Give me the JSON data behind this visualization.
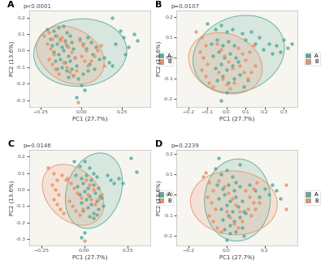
{
  "panels": [
    {
      "label": "A",
      "pvalue": "p<0.0001",
      "xlim": [
        -0.32,
        0.42
      ],
      "ylim": [
        -0.34,
        0.24
      ],
      "xticks": [
        -0.25,
        0.0,
        0.25
      ],
      "ytick_vals": [
        -0.3,
        -0.2,
        -0.1,
        0.0,
        0.1,
        0.2
      ],
      "ytick_labels": [
        "-0.3",
        "-0.2",
        "-0.1",
        "0.0",
        "0.1",
        "0.2"
      ],
      "A_points": [
        [
          -0.21,
          0.13
        ],
        [
          -0.17,
          0.12
        ],
        [
          -0.14,
          0.14
        ],
        [
          -0.11,
          0.15
        ],
        [
          -0.09,
          0.11
        ],
        [
          -0.19,
          0.07
        ],
        [
          -0.16,
          0.09
        ],
        [
          -0.13,
          0.07
        ],
        [
          -0.1,
          0.06
        ],
        [
          -0.07,
          0.09
        ],
        [
          -0.18,
          0.03
        ],
        [
          -0.15,
          0.04
        ],
        [
          -0.12,
          0.02
        ],
        [
          -0.09,
          0.03
        ],
        [
          -0.06,
          0.05
        ],
        [
          -0.17,
          -0.01
        ],
        [
          -0.14,
          -0.02
        ],
        [
          -0.11,
          0.0
        ],
        [
          -0.08,
          -0.03
        ],
        [
          -0.05,
          0.01
        ],
        [
          -0.16,
          -0.06
        ],
        [
          -0.13,
          -0.05
        ],
        [
          -0.1,
          -0.07
        ],
        [
          -0.07,
          -0.06
        ],
        [
          -0.04,
          -0.04
        ],
        [
          -0.15,
          -0.11
        ],
        [
          -0.12,
          -0.1
        ],
        [
          -0.09,
          -0.12
        ],
        [
          -0.06,
          -0.11
        ],
        [
          -0.03,
          -0.09
        ],
        [
          -0.08,
          -0.16
        ],
        [
          -0.05,
          -0.15
        ],
        [
          -0.02,
          -0.17
        ],
        [
          0.01,
          -0.14
        ],
        [
          0.04,
          -0.12
        ],
        [
          -0.01,
          0.07
        ],
        [
          0.01,
          0.04
        ],
        [
          0.04,
          0.08
        ],
        [
          0.03,
          0.01
        ],
        [
          0.06,
          0.05
        ],
        [
          0.07,
          -0.02
        ],
        [
          0.09,
          0.02
        ],
        [
          0.11,
          -0.05
        ],
        [
          0.05,
          -0.08
        ],
        [
          0.08,
          -0.11
        ],
        [
          0.0,
          -0.21
        ],
        [
          0.02,
          -0.24
        ],
        [
          0.19,
          0.2
        ],
        [
          0.24,
          0.12
        ],
        [
          0.26,
          0.08
        ],
        [
          0.21,
          0.04
        ],
        [
          0.29,
          0.02
        ],
        [
          0.27,
          -0.02
        ],
        [
          0.32,
          0.1
        ],
        [
          0.34,
          0.06
        ],
        [
          0.14,
          -0.04
        ],
        [
          0.17,
          -0.07
        ],
        [
          0.19,
          -0.09
        ],
        [
          -0.03,
          -0.28
        ]
      ],
      "B_points": [
        [
          -0.23,
          0.09
        ],
        [
          -0.2,
          0.11
        ],
        [
          -0.18,
          0.07
        ],
        [
          -0.21,
          0.04
        ],
        [
          -0.19,
          0.01
        ],
        [
          -0.17,
          -0.02
        ],
        [
          -0.2,
          -0.05
        ],
        [
          -0.18,
          -0.08
        ],
        [
          -0.16,
          -0.11
        ],
        [
          -0.14,
          -0.14
        ],
        [
          -0.12,
          0.08
        ],
        [
          -0.1,
          0.05
        ],
        [
          -0.08,
          0.02
        ],
        [
          -0.06,
          -0.01
        ],
        [
          -0.04,
          -0.04
        ],
        [
          -0.11,
          -0.07
        ],
        [
          -0.09,
          -0.1
        ],
        [
          -0.07,
          -0.13
        ],
        [
          -0.05,
          -0.15
        ],
        [
          -0.03,
          -0.12
        ],
        [
          -0.01,
          0.06
        ],
        [
          0.01,
          0.03
        ],
        [
          0.03,
          0.0
        ],
        [
          0.0,
          -0.03
        ],
        [
          0.02,
          -0.06
        ],
        [
          0.04,
          -0.09
        ],
        [
          0.06,
          -0.06
        ],
        [
          0.08,
          -0.03
        ],
        [
          0.1,
          0.0
        ],
        [
          0.12,
          0.03
        ],
        [
          -0.15,
          0.09
        ],
        [
          -0.13,
          0.06
        ],
        [
          -0.02,
          -0.31
        ],
        [
          0.14,
          -0.09
        ]
      ]
    },
    {
      "label": "B",
      "pvalue": "p=0.0107",
      "xlim": [
        -0.26,
        0.37
      ],
      "ylim": [
        -0.24,
        0.23
      ],
      "xticks": [
        -0.2,
        -0.1,
        0.0,
        0.1,
        0.2,
        0.3
      ],
      "ytick_vals": [
        -0.2,
        -0.1,
        0.0,
        0.1,
        0.2
      ],
      "ytick_labels": [
        "-0.2",
        "-0.1",
        "0.0",
        "0.1",
        "0.2"
      ],
      "A_points": [
        [
          -0.1,
          0.17
        ],
        [
          -0.06,
          0.14
        ],
        [
          -0.03,
          0.16
        ],
        [
          0.0,
          0.13
        ],
        [
          0.03,
          0.14
        ],
        [
          -0.08,
          0.07
        ],
        [
          -0.05,
          0.09
        ],
        [
          -0.02,
          0.06
        ],
        [
          0.01,
          0.08
        ],
        [
          0.04,
          0.06
        ],
        [
          -0.07,
          0.01
        ],
        [
          -0.04,
          0.03
        ],
        [
          -0.01,
          0.0
        ],
        [
          0.02,
          0.02
        ],
        [
          0.05,
          0.0
        ],
        [
          -0.06,
          -0.05
        ],
        [
          -0.03,
          -0.03
        ],
        [
          0.0,
          -0.06
        ],
        [
          0.03,
          -0.04
        ],
        [
          0.06,
          -0.02
        ],
        [
          -0.05,
          -0.11
        ],
        [
          -0.02,
          -0.09
        ],
        [
          0.01,
          -0.12
        ],
        [
          0.04,
          -0.1
        ],
        [
          0.07,
          -0.08
        ],
        [
          0.08,
          0.12
        ],
        [
          0.1,
          0.09
        ],
        [
          0.13,
          0.13
        ],
        [
          0.15,
          0.07
        ],
        [
          0.17,
          0.1
        ],
        [
          0.19,
          0.04
        ],
        [
          0.22,
          0.07
        ],
        [
          0.24,
          0.02
        ],
        [
          0.26,
          0.06
        ],
        [
          0.28,
          0.03
        ],
        [
          0.3,
          0.09
        ],
        [
          0.32,
          0.05
        ],
        [
          0.34,
          0.07
        ],
        [
          -0.03,
          -0.21
        ],
        [
          0.0,
          -0.17
        ],
        [
          0.09,
          -0.14
        ],
        [
          0.11,
          -0.11
        ]
      ],
      "B_points": [
        [
          -0.16,
          0.13
        ],
        [
          -0.13,
          0.1
        ],
        [
          -0.11,
          0.06
        ],
        [
          -0.14,
          0.03
        ],
        [
          -0.12,
          0.0
        ],
        [
          -0.1,
          -0.03
        ],
        [
          -0.13,
          -0.06
        ],
        [
          -0.11,
          -0.09
        ],
        [
          -0.09,
          -0.12
        ],
        [
          -0.07,
          -0.14
        ],
        [
          -0.05,
          0.07
        ],
        [
          -0.03,
          0.04
        ],
        [
          -0.01,
          0.01
        ],
        [
          0.01,
          -0.02
        ],
        [
          0.03,
          -0.05
        ],
        [
          -0.04,
          -0.07
        ],
        [
          -0.02,
          -0.1
        ],
        [
          0.0,
          -0.13
        ],
        [
          0.02,
          -0.15
        ],
        [
          0.04,
          -0.12
        ],
        [
          0.06,
          0.05
        ],
        [
          0.08,
          0.02
        ],
        [
          0.1,
          -0.01
        ],
        [
          0.07,
          -0.04
        ],
        [
          0.09,
          -0.07
        ],
        [
          0.11,
          -0.1
        ],
        [
          0.13,
          -0.07
        ],
        [
          0.15,
          -0.04
        ],
        [
          0.12,
          0.03
        ],
        [
          0.14,
          0.06
        ]
      ]
    },
    {
      "label": "C",
      "pvalue": "p=0.0146",
      "xlim": [
        -0.32,
        0.38
      ],
      "ylim": [
        -0.34,
        0.24
      ],
      "xticks": [
        -0.25,
        0.0,
        0.25
      ],
      "ytick_vals": [
        -0.3,
        -0.2,
        -0.1,
        0.0,
        0.1,
        0.2
      ],
      "ytick_labels": [
        "-0.3",
        "-0.2",
        "-0.1",
        "0.0",
        "0.1",
        "0.2"
      ],
      "A_points": [
        [
          -0.06,
          0.17
        ],
        [
          -0.03,
          0.14
        ],
        [
          0.0,
          0.17
        ],
        [
          0.03,
          0.13
        ],
        [
          0.05,
          0.1
        ],
        [
          -0.05,
          0.09
        ],
        [
          -0.02,
          0.07
        ],
        [
          0.01,
          0.09
        ],
        [
          0.04,
          0.06
        ],
        [
          0.07,
          0.08
        ],
        [
          -0.04,
          0.02
        ],
        [
          -0.01,
          0.04
        ],
        [
          0.02,
          0.01
        ],
        [
          0.05,
          0.03
        ],
        [
          0.08,
          0.01
        ],
        [
          -0.03,
          -0.03
        ],
        [
          0.0,
          -0.01
        ],
        [
          0.03,
          -0.04
        ],
        [
          0.06,
          -0.02
        ],
        [
          0.09,
          -0.04
        ],
        [
          -0.02,
          -0.08
        ],
        [
          0.01,
          -0.06
        ],
        [
          0.04,
          -0.09
        ],
        [
          0.07,
          -0.07
        ],
        [
          0.1,
          -0.05
        ],
        [
          -0.01,
          -0.13
        ],
        [
          0.02,
          -0.11
        ],
        [
          0.05,
          -0.14
        ],
        [
          0.08,
          -0.12
        ],
        [
          0.11,
          -0.1
        ],
        [
          0.13,
          0.09
        ],
        [
          0.15,
          0.06
        ],
        [
          0.17,
          0.04
        ],
        [
          0.2,
          0.07
        ],
        [
          0.22,
          0.04
        ],
        [
          0.27,
          0.19
        ],
        [
          0.3,
          0.11
        ],
        [
          -0.02,
          -0.29
        ],
        [
          0.0,
          -0.26
        ],
        [
          0.03,
          -0.16
        ],
        [
          0.05,
          -0.17
        ],
        [
          0.07,
          -0.15
        ]
      ],
      "B_points": [
        [
          -0.21,
          0.13
        ],
        [
          -0.18,
          0.1
        ],
        [
          -0.16,
          0.06
        ],
        [
          -0.19,
          0.03
        ],
        [
          -0.17,
          0.0
        ],
        [
          -0.15,
          -0.03
        ],
        [
          -0.18,
          -0.06
        ],
        [
          -0.16,
          -0.09
        ],
        [
          -0.14,
          -0.12
        ],
        [
          -0.12,
          -0.14
        ],
        [
          -0.1,
          0.07
        ],
        [
          -0.08,
          0.04
        ],
        [
          -0.06,
          0.01
        ],
        [
          -0.04,
          -0.02
        ],
        [
          -0.02,
          -0.05
        ],
        [
          -0.09,
          -0.07
        ],
        [
          -0.07,
          -0.1
        ],
        [
          -0.05,
          -0.13
        ],
        [
          -0.03,
          -0.15
        ],
        [
          -0.01,
          -0.12
        ],
        [
          0.01,
          0.06
        ],
        [
          0.03,
          0.03
        ],
        [
          0.05,
          0.0
        ],
        [
          0.02,
          -0.03
        ],
        [
          0.04,
          -0.06
        ],
        [
          0.06,
          -0.09
        ],
        [
          0.08,
          -0.06
        ],
        [
          0.1,
          -0.03
        ],
        [
          -0.13,
          0.09
        ],
        [
          -0.11,
          0.06
        ],
        [
          -0.0,
          -0.31
        ]
      ]
    },
    {
      "label": "D",
      "pvalue": "p=0.2239",
      "xlim": [
        -0.26,
        0.37
      ],
      "ylim": [
        -0.25,
        0.22
      ],
      "xticks": [
        -0.2,
        0.0,
        0.2
      ],
      "ytick_vals": [
        -0.2,
        -0.1,
        0.0,
        0.1,
        0.2
      ],
      "ytick_labels": [
        "-0.2",
        "-0.1",
        "0.0",
        "0.1",
        "0.2"
      ],
      "A_points": [
        [
          -0.06,
          0.13
        ],
        [
          -0.03,
          0.1
        ],
        [
          0.0,
          0.12
        ],
        [
          0.03,
          0.09
        ],
        [
          0.05,
          0.06
        ],
        [
          -0.05,
          0.05
        ],
        [
          -0.02,
          0.03
        ],
        [
          0.01,
          0.05
        ],
        [
          0.04,
          0.02
        ],
        [
          0.07,
          0.04
        ],
        [
          -0.04,
          -0.02
        ],
        [
          -0.01,
          0.0
        ],
        [
          0.02,
          -0.03
        ],
        [
          0.05,
          -0.01
        ],
        [
          0.08,
          -0.03
        ],
        [
          -0.03,
          -0.07
        ],
        [
          0.0,
          -0.05
        ],
        [
          0.03,
          -0.08
        ],
        [
          0.06,
          -0.06
        ],
        [
          0.09,
          -0.08
        ],
        [
          -0.02,
          -0.12
        ],
        [
          0.01,
          -0.1
        ],
        [
          0.04,
          -0.13
        ],
        [
          0.07,
          -0.11
        ],
        [
          0.1,
          -0.09
        ],
        [
          -0.01,
          -0.17
        ],
        [
          0.02,
          -0.15
        ],
        [
          0.05,
          -0.18
        ],
        [
          0.08,
          -0.16
        ],
        [
          0.12,
          0.05
        ],
        [
          0.15,
          0.02
        ],
        [
          0.17,
          -0.01
        ],
        [
          0.2,
          0.03
        ],
        [
          0.22,
          0.0
        ],
        [
          0.24,
          0.05
        ],
        [
          0.26,
          0.02
        ],
        [
          0.28,
          -0.02
        ],
        [
          0.0,
          -0.22
        ],
        [
          0.02,
          -0.19
        ],
        [
          0.09,
          -0.2
        ],
        [
          -0.04,
          0.18
        ],
        [
          0.07,
          0.15
        ]
      ],
      "B_points": [
        [
          -0.12,
          0.09
        ],
        [
          -0.09,
          0.06
        ],
        [
          -0.07,
          0.02
        ],
        [
          -0.1,
          -0.01
        ],
        [
          -0.08,
          -0.04
        ],
        [
          -0.06,
          -0.07
        ],
        [
          -0.09,
          -0.1
        ],
        [
          -0.07,
          -0.13
        ],
        [
          -0.05,
          -0.16
        ],
        [
          -0.03,
          -0.18
        ],
        [
          -0.01,
          0.04
        ],
        [
          0.01,
          0.01
        ],
        [
          0.03,
          -0.02
        ],
        [
          0.05,
          -0.05
        ],
        [
          0.07,
          -0.08
        ],
        [
          0.0,
          -0.08
        ],
        [
          0.02,
          -0.11
        ],
        [
          0.04,
          -0.14
        ],
        [
          0.06,
          -0.16
        ],
        [
          0.08,
          -0.13
        ],
        [
          0.1,
          0.02
        ],
        [
          0.12,
          -0.01
        ],
        [
          0.14,
          -0.04
        ],
        [
          0.11,
          -0.07
        ],
        [
          0.13,
          -0.1
        ],
        [
          0.15,
          -0.07
        ],
        [
          0.17,
          -0.04
        ],
        [
          0.14,
          0.03
        ],
        [
          0.16,
          0.06
        ],
        [
          -0.11,
          0.11
        ],
        [
          -0.04,
          0.07
        ],
        [
          0.31,
          0.05
        ],
        [
          0.31,
          -0.07
        ]
      ]
    }
  ],
  "color_A": "#5BAD99",
  "color_B": "#E8956D",
  "ellipse_alpha_fill": 0.2,
  "ellipse_alpha_border": 0.9,
  "marker_size": 10,
  "marker_alpha": 0.85,
  "xlabel": "PC1 (27.7%)",
  "ylabel": "PC2 (13.6%)",
  "plot_bg": "#f7f5f0",
  "fig_bg": "white",
  "n_std": 2.0
}
